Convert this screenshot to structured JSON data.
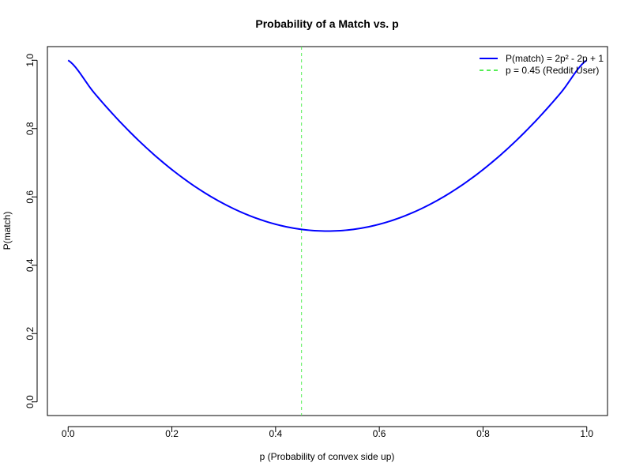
{
  "chart_data": {
    "type": "line",
    "title": "Probability of a Match vs. p",
    "xlabel": "p (Probability of convex side up)",
    "ylabel": "P(match)",
    "xlim": [
      -0.04,
      1.04
    ],
    "ylim": [
      -0.04,
      1.04
    ],
    "xticks": [
      0.0,
      0.2,
      0.4,
      0.6,
      0.8,
      1.0
    ],
    "xtick_labels": [
      "0.0",
      "0.2",
      "0.4",
      "0.6",
      "0.8",
      "1.0"
    ],
    "yticks": [
      0.0,
      0.2,
      0.4,
      0.6,
      0.8,
      1.0
    ],
    "ytick_labels": [
      "0.0",
      "0.2",
      "0.4",
      "0.6",
      "0.8",
      "1.0"
    ],
    "grid": false,
    "legend_position": "top-right",
    "series": [
      {
        "name": "P(match) = 2p² - 2p + 1",
        "color": "#0000ff",
        "line_style": "solid",
        "x": [
          0.0,
          0.05,
          0.1,
          0.15,
          0.2,
          0.25,
          0.3,
          0.35,
          0.4,
          0.45,
          0.5,
          0.55,
          0.6,
          0.65,
          0.7,
          0.75,
          0.8,
          0.85,
          0.9,
          0.95,
          1.0
        ],
        "y": [
          1.0,
          0.905,
          0.82,
          0.745,
          0.68,
          0.625,
          0.58,
          0.545,
          0.52,
          0.505,
          0.5,
          0.505,
          0.52,
          0.545,
          0.58,
          0.625,
          0.68,
          0.745,
          0.82,
          0.905,
          1.0
        ]
      }
    ],
    "reference_line": {
      "name": "p = 0.45 (Reddit User)",
      "orientation": "vertical",
      "x": 0.45,
      "color": "#55ee55",
      "line_style": "dashed"
    }
  }
}
